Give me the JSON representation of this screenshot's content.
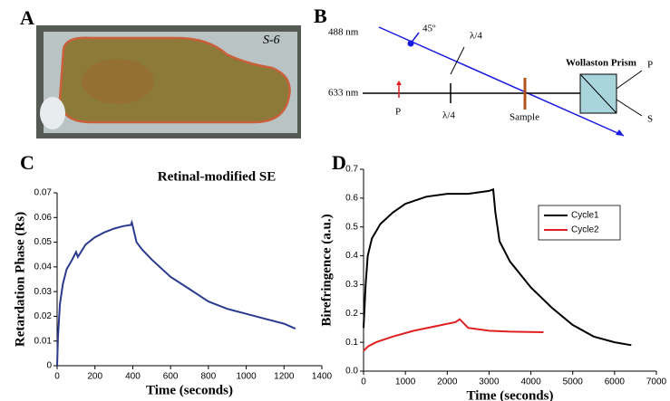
{
  "panel_labels": [
    "A",
    "B",
    "C",
    "D"
  ],
  "photo": {
    "label": "S-6"
  },
  "diagram": {
    "beam_488": "488 nm",
    "angle": "45º",
    "plate_upper": "λ/4",
    "prism": "Wollaston Prism",
    "out_p": "P",
    "beam_633": "633 nm",
    "pol_p": "P",
    "plate_lower": "λ/4",
    "sample": "Sample",
    "out_s": "S"
  },
  "chart_data": [
    {
      "type": "line",
      "title": "Retinal-modified SE",
      "x_label": "Time (seconds)",
      "y_label": "Retardation Phase (Rs)",
      "xlim": [
        0,
        1400
      ],
      "xticks": [
        0,
        200,
        400,
        600,
        800,
        1000,
        1200,
        1400
      ],
      "ylim": [
        0,
        0.07
      ],
      "yticks": [
        0,
        0.01,
        0.02,
        0.03,
        0.04,
        0.05,
        0.06,
        0.07
      ],
      "series": [
        {
          "color": "#2b3a8f",
          "x": [
            0,
            5,
            15,
            30,
            50,
            80,
            100,
            110,
            150,
            200,
            250,
            300,
            350,
            390,
            395,
            420,
            450,
            500,
            600,
            700,
            760,
            800,
            900,
            1000,
            1100,
            1200,
            1260
          ],
          "values": [
            0,
            0.012,
            0.025,
            0.033,
            0.039,
            0.043,
            0.046,
            0.044,
            0.049,
            0.052,
            0.054,
            0.0555,
            0.0565,
            0.057,
            0.058,
            0.05,
            0.047,
            0.043,
            0.036,
            0.031,
            0.028,
            0.026,
            0.023,
            0.021,
            0.019,
            0.017,
            0.015
          ]
        }
      ]
    },
    {
      "type": "line",
      "x_label": "Time (seconds)",
      "y_label": "Birefringence (a.u.)",
      "xlim": [
        0,
        7000
      ],
      "xticks": [
        0,
        1000,
        2000,
        3000,
        4000,
        5000,
        6000,
        7000
      ],
      "ylim": [
        0,
        0.7
      ],
      "yticks": [
        {
          "value": 0,
          "label": "0.0"
        },
        0.1,
        0.2,
        0.3,
        0.4,
        0.5,
        0.6,
        0.7
      ],
      "legend": "right",
      "series": [
        {
          "name": "Cycle1",
          "color": "#000000",
          "x": [
            0,
            50,
            100,
            200,
            400,
            700,
            1000,
            1500,
            2000,
            2500,
            3000,
            3100,
            3150,
            3250,
            3500,
            4000,
            4500,
            5000,
            5500,
            6000,
            6400
          ],
          "values": [
            0.15,
            0.3,
            0.4,
            0.46,
            0.51,
            0.55,
            0.58,
            0.605,
            0.615,
            0.615,
            0.625,
            0.63,
            0.55,
            0.45,
            0.38,
            0.29,
            0.22,
            0.16,
            0.12,
            0.1,
            0.09
          ]
        },
        {
          "name": "Cycle2",
          "color": "#e02020",
          "x": [
            0,
            100,
            300,
            700,
            1200,
            1700,
            2200,
            2300,
            2500,
            3000,
            3500,
            4300
          ],
          "values": [
            0.07,
            0.085,
            0.1,
            0.12,
            0.14,
            0.155,
            0.17,
            0.18,
            0.15,
            0.14,
            0.137,
            0.135
          ]
        }
      ]
    }
  ]
}
